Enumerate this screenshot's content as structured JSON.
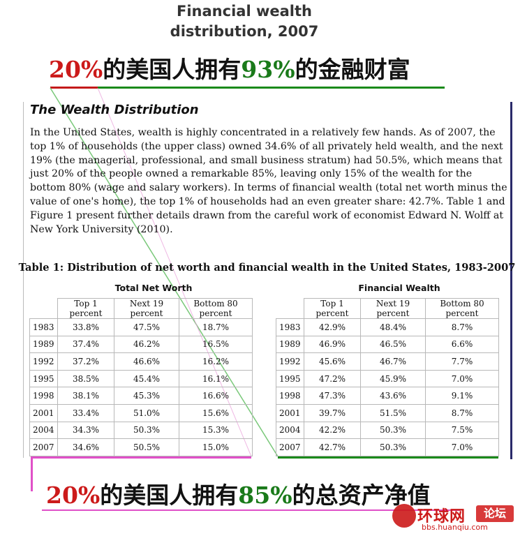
{
  "title": {
    "line1": "Financial wealth",
    "line2": "distribution, 2007"
  },
  "headline_top": {
    "pct_a": "20%",
    "mid": "的美国人拥有",
    "pct_b": "93%",
    "tail": "的金融财富"
  },
  "headline_bottom": {
    "pct_a": "20%",
    "mid": "的美国人拥有",
    "pct_b": "85%",
    "tail": "的总资产净值"
  },
  "article": {
    "heading": "The Wealth Distribution",
    "body": "In the United States, wealth is highly concentrated in a relatively few hands. As of 2007, the top 1% of households (the upper class) owned 34.6% of all privately held wealth, and the next 19% (the managerial, professional, and small business stratum) had 50.5%, which means that just 20% of the people owned a remarkable 85%, leaving only 15% of the wealth for the bottom 80% (wage and salary workers). In terms of financial wealth (total net worth minus the value of one's home), the top 1% of households had an even greater share: 42.7%. Table 1 and Figure 1 present further details drawn from the careful work of economist Edward N. Wolff at New York University (2010)."
  },
  "table": {
    "caption": "Table 1: Distribution of net worth and financial wealth in the United States, 1983-2007",
    "columns": [
      "Top 1 percent",
      "Next 19 percent",
      "Bottom 80 percent"
    ],
    "net_worth": {
      "label": "Total Net Worth",
      "rows": [
        {
          "year": "1983",
          "top1": "33.8%",
          "next19": "47.5%",
          "bottom80": "18.7%"
        },
        {
          "year": "1989",
          "top1": "37.4%",
          "next19": "46.2%",
          "bottom80": "16.5%"
        },
        {
          "year": "1992",
          "top1": "37.2%",
          "next19": "46.6%",
          "bottom80": "16.2%"
        },
        {
          "year": "1995",
          "top1": "38.5%",
          "next19": "45.4%",
          "bottom80": "16.1%"
        },
        {
          "year": "1998",
          "top1": "38.1%",
          "next19": "45.3%",
          "bottom80": "16.6%"
        },
        {
          "year": "2001",
          "top1": "33.4%",
          "next19": "51.0%",
          "bottom80": "15.6%"
        },
        {
          "year": "2004",
          "top1": "34.3%",
          "next19": "50.3%",
          "bottom80": "15.3%"
        },
        {
          "year": "2007",
          "top1": "34.6%",
          "next19": "50.5%",
          "bottom80": "15.0%"
        }
      ]
    },
    "financial_wealth": {
      "label": "Financial Wealth",
      "rows": [
        {
          "year": "1983",
          "top1": "42.9%",
          "next19": "48.4%",
          "bottom80": "8.7%"
        },
        {
          "year": "1989",
          "top1": "46.9%",
          "next19": "46.5%",
          "bottom80": "6.6%"
        },
        {
          "year": "1992",
          "top1": "45.6%",
          "next19": "46.7%",
          "bottom80": "7.7%"
        },
        {
          "year": "1995",
          "top1": "47.2%",
          "next19": "45.9%",
          "bottom80": "7.0%"
        },
        {
          "year": "1998",
          "top1": "47.3%",
          "next19": "43.6%",
          "bottom80": "9.1%"
        },
        {
          "year": "2001",
          "top1": "39.7%",
          "next19": "51.5%",
          "bottom80": "8.7%"
        },
        {
          "year": "2004",
          "top1": "42.2%",
          "next19": "50.3%",
          "bottom80": "7.5%"
        },
        {
          "year": "2007",
          "top1": "42.7%",
          "next19": "50.3%",
          "bottom80": "7.0%"
        }
      ]
    }
  },
  "watermark": {
    "brand": "环球网",
    "forum": "论坛",
    "url": "bbs.huanqiu.com"
  },
  "colors": {
    "highlight_red": "#cc1a1a",
    "highlight_green": "#1a7a1a",
    "annotation_pink": "#e050c8",
    "rule_navy": "#2a2a6a"
  }
}
